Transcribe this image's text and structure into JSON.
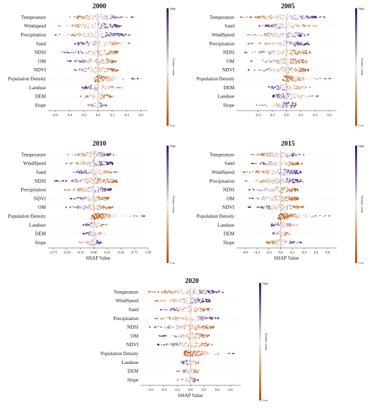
{
  "colors": {
    "high": "#3b0f6f",
    "mid": "#f3ece4",
    "low": "#b54a04",
    "zero_line": "#9a9a9a",
    "grid": "#e2e2e2"
  },
  "colorbar": {
    "high_label": "High",
    "low_label": "Low",
    "axis_label": "Feature value"
  },
  "chart_data": [
    {
      "type": "beeswarm",
      "title": "2000",
      "xlabel": "",
      "xlim": [
        -0.7,
        0.7
      ],
      "xticks": [
        "-0.6",
        "-0.4",
        "-0.2",
        "0.0",
        "0.2",
        "0.4",
        "0.6"
      ],
      "xtick_values": [
        -0.6,
        -0.4,
        -0.2,
        0.0,
        0.2,
        0.4,
        0.6
      ],
      "features": [
        {
          "name": "Temperature",
          "min": -0.4,
          "max": 0.5,
          "orient": 1
        },
        {
          "name": "Windspeed",
          "min": -0.55,
          "max": 0.35,
          "orient": 1
        },
        {
          "name": "Precipitation",
          "min": -0.6,
          "max": 0.45,
          "orient": 1
        },
        {
          "name": "Sand",
          "min": -0.35,
          "max": 0.45,
          "orient": -1
        },
        {
          "name": "NDSI",
          "min": -0.5,
          "max": 0.3,
          "orient": -1
        },
        {
          "name": "OM",
          "min": -0.45,
          "max": 0.3,
          "orient": -1
        },
        {
          "name": "NDVI",
          "min": -0.45,
          "max": 0.3,
          "orient": -1
        },
        {
          "name": "Population Density",
          "min": -0.05,
          "max": 0.6,
          "orient": 1
        },
        {
          "name": "Landuse",
          "min": -0.25,
          "max": 0.35,
          "orient": -1
        },
        {
          "name": "DEM",
          "min": -0.3,
          "max": 0.2,
          "orient": -1
        },
        {
          "name": "Slope",
          "min": -0.15,
          "max": 0.15,
          "orient": 1
        }
      ]
    },
    {
      "type": "beeswarm",
      "title": "2005",
      "xlabel": "",
      "xlim": [
        -0.7,
        0.7
      ],
      "xticks": [
        "-0.4",
        "-0.2",
        "0.0",
        "0.2",
        "0.4",
        "0.6"
      ],
      "xtick_values": [
        -0.4,
        -0.2,
        0.0,
        0.2,
        0.4,
        0.6
      ],
      "features": [
        {
          "name": "Temperature",
          "min": -0.65,
          "max": 0.55,
          "orient": 1
        },
        {
          "name": "Sand",
          "min": -0.4,
          "max": 0.45,
          "orient": -1
        },
        {
          "name": "WindSpeed",
          "min": -0.55,
          "max": 0.35,
          "orient": 1
        },
        {
          "name": "Precipitation",
          "min": -0.55,
          "max": 0.35,
          "orient": 1
        },
        {
          "name": "NDSI",
          "min": -0.6,
          "max": 0.35,
          "orient": -1
        },
        {
          "name": "OM",
          "min": -0.5,
          "max": 0.3,
          "orient": -1
        },
        {
          "name": "NDVI",
          "min": -0.55,
          "max": 0.35,
          "orient": -1
        },
        {
          "name": "Population Density",
          "min": -0.05,
          "max": 0.65,
          "orient": 1
        },
        {
          "name": "DEM",
          "min": -0.25,
          "max": 0.35,
          "orient": -1
        },
        {
          "name": "Landuse",
          "min": -0.2,
          "max": 0.45,
          "orient": -1
        },
        {
          "name": "Slope",
          "min": -0.45,
          "max": 0.15,
          "orient": 1
        }
      ]
    },
    {
      "type": "beeswarm",
      "title": "2010",
      "xlabel": "SHAP Value",
      "xlim": [
        -0.85,
        1.0
      ],
      "xticks": [
        "-0.75",
        "-0.50",
        "-0.25",
        "0.00",
        "0.25",
        "0.50",
        "0.75",
        "1.00"
      ],
      "xtick_values": [
        -0.75,
        -0.5,
        -0.25,
        0.0,
        0.25,
        0.5,
        0.75,
        1.0
      ],
      "features": [
        {
          "name": "Temperature",
          "min": -0.5,
          "max": 0.4,
          "orient": 1
        },
        {
          "name": "WindSpeed",
          "min": -0.6,
          "max": 0.35,
          "orient": 1
        },
        {
          "name": "Sand",
          "min": -0.4,
          "max": 0.45,
          "orient": -1
        },
        {
          "name": "NDSI",
          "min": -0.75,
          "max": 0.45,
          "orient": -1
        },
        {
          "name": "Precipitation",
          "min": -0.55,
          "max": 0.35,
          "orient": 1
        },
        {
          "name": "NDVI",
          "min": -0.45,
          "max": 0.3,
          "orient": -1
        },
        {
          "name": "OM",
          "min": -0.55,
          "max": 0.35,
          "orient": -1
        },
        {
          "name": "Population Density",
          "min": -0.05,
          "max": 0.95,
          "orient": 1
        },
        {
          "name": "Landuse",
          "min": -0.2,
          "max": 0.25,
          "orient": -1
        },
        {
          "name": "DEM",
          "min": -0.2,
          "max": 0.2,
          "orient": -1
        },
        {
          "name": "Slope",
          "min": -0.3,
          "max": 0.15,
          "orient": 1
        }
      ]
    },
    {
      "type": "beeswarm",
      "title": "2015",
      "xlabel": "SHAP Value",
      "xlim": [
        -0.75,
        0.95
      ],
      "xticks": [
        "-0.6",
        "-0.4",
        "-0.2",
        "0.0",
        "0.2",
        "0.4",
        "0.6",
        "0.8"
      ],
      "xtick_values": [
        -0.6,
        -0.4,
        -0.2,
        0.0,
        0.2,
        0.4,
        0.6,
        0.8
      ],
      "features": [
        {
          "name": "Temperature",
          "min": -0.5,
          "max": 0.45,
          "orient": 1
        },
        {
          "name": "Sand",
          "min": -0.5,
          "max": 0.4,
          "orient": -1
        },
        {
          "name": "WindSpeed",
          "min": -0.65,
          "max": 0.35,
          "orient": 1
        },
        {
          "name": "Precipitation",
          "min": -0.6,
          "max": 0.4,
          "orient": 1
        },
        {
          "name": "NDSI",
          "min": -0.55,
          "max": 0.3,
          "orient": -1
        },
        {
          "name": "OM",
          "min": -0.6,
          "max": 0.3,
          "orient": -1
        },
        {
          "name": "NDVI",
          "min": -0.55,
          "max": 0.4,
          "orient": -1
        },
        {
          "name": "Population Density",
          "min": -0.05,
          "max": 0.85,
          "orient": 1
        },
        {
          "name": "Landuse",
          "min": -0.2,
          "max": 0.3,
          "orient": -1
        },
        {
          "name": "DEM",
          "min": -0.2,
          "max": 0.15,
          "orient": -1
        },
        {
          "name": "Slope",
          "min": -0.3,
          "max": 0.35,
          "orient": 1
        }
      ]
    },
    {
      "type": "beeswarm",
      "title": "2020",
      "xlabel": "SHAP Value",
      "xlim": [
        -0.75,
        0.75
      ],
      "xticks": [
        "-0.6",
        "-0.4",
        "-0.2",
        "0.0",
        "0.2",
        "0.4",
        "0.6"
      ],
      "xtick_values": [
        -0.6,
        -0.4,
        -0.2,
        0.0,
        0.2,
        0.4,
        0.6
      ],
      "features": [
        {
          "name": "Temperature",
          "min": -0.65,
          "max": 0.5,
          "orient": 1
        },
        {
          "name": "WindSpeed",
          "min": -0.55,
          "max": 0.3,
          "orient": 1
        },
        {
          "name": "Sand",
          "min": -0.45,
          "max": 0.35,
          "orient": -1
        },
        {
          "name": "Precipitation",
          "min": -0.55,
          "max": 0.45,
          "orient": 1
        },
        {
          "name": "NDSI",
          "min": -0.65,
          "max": 0.35,
          "orient": -1
        },
        {
          "name": "OM",
          "min": -0.5,
          "max": 0.3,
          "orient": -1
        },
        {
          "name": "NDVI",
          "min": -0.5,
          "max": 0.35,
          "orient": -1
        },
        {
          "name": "Population Density",
          "min": -0.1,
          "max": 0.7,
          "orient": 1
        },
        {
          "name": "Landuse",
          "min": -0.15,
          "max": 0.2,
          "orient": -1
        },
        {
          "name": "DEM",
          "min": -0.2,
          "max": 0.15,
          "orient": -1
        },
        {
          "name": "Slope",
          "min": -0.2,
          "max": 0.15,
          "orient": 1
        }
      ]
    }
  ]
}
